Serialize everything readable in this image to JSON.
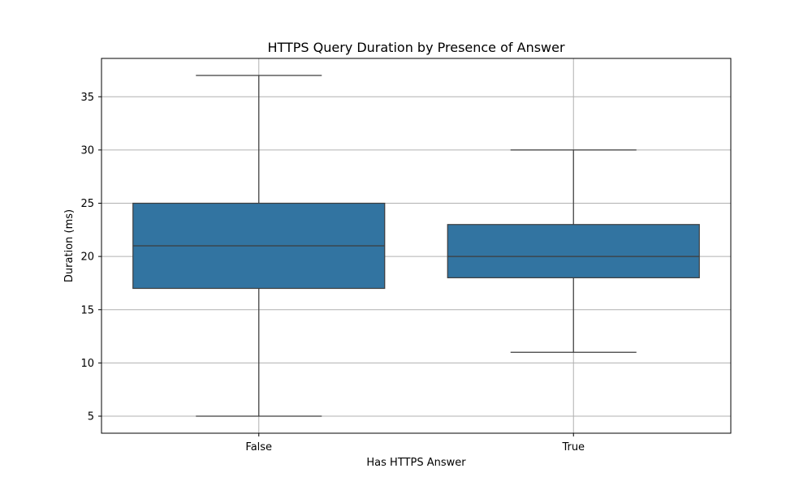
{
  "chart_data": {
    "type": "box",
    "title": "HTTPS Query Duration by Presence of Answer",
    "xlabel": "Has HTTPS Answer",
    "ylabel": "Duration (ms)",
    "categories": [
      "False",
      "True"
    ],
    "boxes": [
      {
        "category": "False",
        "whisker_low": 5,
        "q1": 17,
        "median": 21,
        "q3": 25,
        "whisker_high": 37
      },
      {
        "category": "True",
        "whisker_low": 11,
        "q1": 18,
        "median": 20,
        "q3": 23,
        "whisker_high": 30
      }
    ],
    "ylim": [
      3.4,
      38.6
    ],
    "yticks": [
      5,
      10,
      15,
      20,
      25,
      30,
      35
    ],
    "grid": true,
    "legend": "none",
    "colors": {
      "box_fill": "#3274a1",
      "line": "#3d3d3d",
      "grid": "#b0b0b0"
    }
  }
}
